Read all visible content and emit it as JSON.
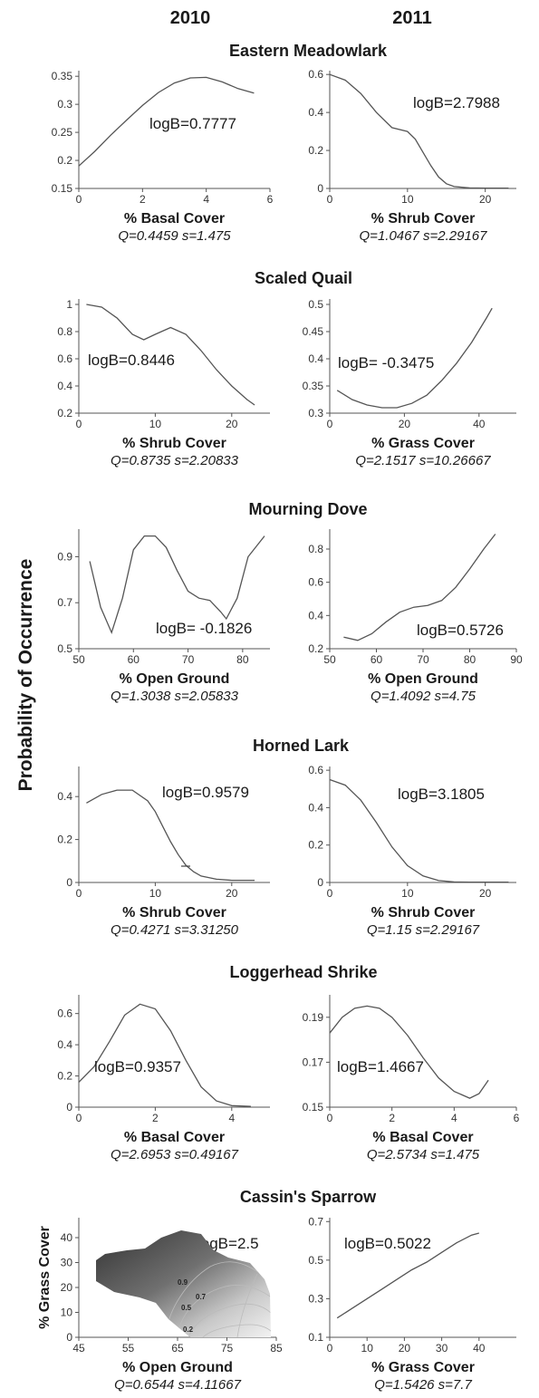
{
  "headers": [
    "2010",
    "2011"
  ],
  "ylabel": "Probability of Occurrence",
  "species": [
    "Eastern Meadowlark",
    "Scaled Quail",
    "Mourning Dove",
    "Horned Lark",
    "Loggerhead Shrike",
    "Cassin's Sparrow"
  ],
  "chart_data": [
    {
      "type": "line",
      "species": "Eastern Meadowlark",
      "year": "2010",
      "title": "",
      "xlabel": "% Basal Cover",
      "ylabel": "",
      "stats": "Q=0.4459 s=1.475",
      "logB": "logB=0.7777",
      "xlim": [
        0,
        6
      ],
      "ylim": [
        0.15,
        0.36
      ],
      "xticks": [
        0,
        2,
        4,
        6
      ],
      "yticks": [
        0.15,
        0.2,
        0.25,
        0.3,
        0.35
      ],
      "x": [
        0,
        0.5,
        1,
        1.5,
        2,
        2.5,
        3,
        3.5,
        4,
        4.5,
        5,
        5.5
      ],
      "y": [
        0.19,
        0.216,
        0.245,
        0.272,
        0.298,
        0.321,
        0.338,
        0.347,
        0.348,
        0.34,
        0.328,
        0.32
      ]
    },
    {
      "type": "line",
      "species": "Eastern Meadowlark",
      "year": "2011",
      "title": "",
      "xlabel": "% Shrub Cover",
      "ylabel": "",
      "stats": "Q=1.0467 s=2.29167",
      "logB": "logB=2.7988",
      "xlim": [
        0,
        24
      ],
      "ylim": [
        0,
        0.62
      ],
      "xticks": [
        0,
        10,
        20
      ],
      "yticks": [
        0,
        0.2,
        0.4,
        0.6
      ],
      "x": [
        0,
        2,
        4,
        6,
        8,
        10,
        11,
        12,
        13,
        14,
        15,
        16,
        18,
        20,
        23
      ],
      "y": [
        0.6,
        0.57,
        0.5,
        0.4,
        0.32,
        0.3,
        0.26,
        0.19,
        0.12,
        0.06,
        0.025,
        0.01,
        0.003,
        0.002,
        0.002
      ]
    },
    {
      "type": "line",
      "species": "Scaled Quail",
      "year": "2010",
      "title": "",
      "xlabel": "% Shrub Cover",
      "ylabel": "",
      "stats": "Q=0.8735 s=2.20833",
      "logB": "logB=0.8446",
      "xlim": [
        0,
        25
      ],
      "ylim": [
        0.2,
        1.04
      ],
      "xticks": [
        0,
        10,
        20
      ],
      "yticks": [
        0.2,
        0.4,
        0.6,
        0.8,
        1.0
      ],
      "x": [
        1,
        3,
        5,
        7,
        8.5,
        10,
        12,
        14,
        16,
        18,
        20,
        22,
        23
      ],
      "y": [
        1.0,
        0.98,
        0.9,
        0.78,
        0.74,
        0.78,
        0.83,
        0.78,
        0.66,
        0.52,
        0.4,
        0.3,
        0.26
      ]
    },
    {
      "type": "line",
      "species": "Scaled Quail",
      "year": "2011",
      "title": "",
      "xlabel": "% Grass Cover",
      "ylabel": "",
      "stats": "Q=2.1517 s=10.26667",
      "logB": "logB= -0.3475",
      "xlim": [
        0,
        50
      ],
      "ylim": [
        0.3,
        0.51
      ],
      "xticks": [
        0,
        20,
        40
      ],
      "yticks": [
        0.3,
        0.35,
        0.4,
        0.45,
        0.5
      ],
      "x": [
        2,
        6,
        10,
        14,
        18,
        22,
        26,
        30,
        34,
        38,
        42,
        43.5
      ],
      "y": [
        0.342,
        0.325,
        0.315,
        0.31,
        0.31,
        0.318,
        0.333,
        0.36,
        0.392,
        0.43,
        0.475,
        0.493
      ]
    },
    {
      "type": "line",
      "species": "Mourning Dove",
      "year": "2010",
      "title": "",
      "xlabel": "% Open Ground",
      "ylabel": "",
      "stats": "Q=1.3038 s=2.05833",
      "logB": "logB= -0.1826",
      "xlim": [
        50,
        85
      ],
      "ylim": [
        0.5,
        1.02
      ],
      "xticks": [
        50,
        60,
        70,
        80
      ],
      "yticks": [
        0.5,
        0.7,
        0.9
      ],
      "x": [
        52,
        54,
        56,
        58,
        60,
        62,
        64,
        66,
        68,
        70,
        72,
        74,
        76,
        77,
        79,
        81,
        84
      ],
      "y": [
        0.88,
        0.68,
        0.57,
        0.72,
        0.93,
        0.99,
        0.99,
        0.94,
        0.84,
        0.75,
        0.72,
        0.71,
        0.66,
        0.63,
        0.72,
        0.9,
        0.99
      ]
    },
    {
      "type": "line",
      "species": "Mourning Dove",
      "year": "2011",
      "title": "",
      "xlabel": "% Open Ground",
      "ylabel": "",
      "stats": "Q=1.4092 s=4.75",
      "logB": "logB=0.5726",
      "xlim": [
        50,
        90
      ],
      "ylim": [
        0.2,
        0.92
      ],
      "xticks": [
        50,
        60,
        70,
        80,
        90
      ],
      "yticks": [
        0.2,
        0.4,
        0.6,
        0.8
      ],
      "x": [
        53,
        56,
        59,
        62,
        65,
        68,
        71,
        74,
        77,
        80,
        83,
        85.5
      ],
      "y": [
        0.27,
        0.25,
        0.29,
        0.36,
        0.42,
        0.45,
        0.46,
        0.49,
        0.57,
        0.68,
        0.8,
        0.89
      ]
    },
    {
      "type": "line",
      "species": "Horned Lark",
      "year": "2010",
      "title": "",
      "xlabel": "% Shrub Cover",
      "ylabel": "",
      "stats": "Q=0.4271 s=3.31250",
      "logB": "logB=0.9579",
      "xlim": [
        0,
        25
      ],
      "ylim": [
        0,
        0.54
      ],
      "xticks": [
        0,
        10,
        20
      ],
      "yticks": [
        0,
        0.2,
        0.4
      ],
      "x": [
        1,
        3,
        5,
        7,
        9,
        10,
        11,
        12,
        13,
        14,
        15,
        16,
        18,
        20,
        23
      ],
      "y": [
        0.37,
        0.41,
        0.43,
        0.43,
        0.38,
        0.33,
        0.26,
        0.19,
        0.13,
        0.08,
        0.05,
        0.03,
        0.015,
        0.01,
        0.01
      ]
    },
    {
      "type": "line",
      "species": "Horned Lark",
      "year": "2011",
      "title": "",
      "xlabel": "% Shrub Cover",
      "ylabel": "",
      "stats": "Q=1.15 s=2.29167",
      "logB": "logB=3.1805",
      "xlim": [
        0,
        24
      ],
      "ylim": [
        0,
        0.62
      ],
      "xticks": [
        0,
        10,
        20
      ],
      "yticks": [
        0,
        0.2,
        0.4,
        0.6
      ],
      "x": [
        0,
        2,
        4,
        6,
        8,
        10,
        12,
        14,
        16,
        18,
        20,
        23
      ],
      "y": [
        0.55,
        0.52,
        0.44,
        0.32,
        0.19,
        0.09,
        0.035,
        0.01,
        0.003,
        0.002,
        0.002,
        0.002
      ]
    },
    {
      "type": "line",
      "species": "Loggerhead Shrike",
      "year": "2010",
      "title": "",
      "xlabel": "% Basal Cover",
      "ylabel": "",
      "stats": "Q=2.6953 s=0.49167",
      "logB": "logB=0.9357",
      "xlim": [
        0,
        5
      ],
      "ylim": [
        0,
        0.72
      ],
      "xticks": [
        0,
        2,
        4
      ],
      "yticks": [
        0,
        0.2,
        0.4,
        0.6
      ],
      "x": [
        0,
        0.4,
        0.8,
        1.2,
        1.6,
        2.0,
        2.4,
        2.8,
        3.2,
        3.6,
        4.0,
        4.5
      ],
      "y": [
        0.16,
        0.26,
        0.42,
        0.59,
        0.66,
        0.63,
        0.49,
        0.3,
        0.13,
        0.04,
        0.01,
        0.005
      ]
    },
    {
      "type": "line",
      "species": "Loggerhead Shrike",
      "year": "2011",
      "title": "",
      "xlabel": "% Basal Cover",
      "ylabel": "",
      "stats": "Q=2.5734 s=1.475",
      "logB": "logB=1.4667",
      "xlim": [
        0,
        6
      ],
      "ylim": [
        0.15,
        0.2
      ],
      "xticks": [
        0,
        2,
        4,
        6
      ],
      "yticks": [
        0.15,
        0.17,
        0.19
      ],
      "x": [
        0,
        0.4,
        0.8,
        1.2,
        1.6,
        2.0,
        2.5,
        3.0,
        3.5,
        4.0,
        4.5,
        4.8,
        5.1
      ],
      "y": [
        0.183,
        0.19,
        0.194,
        0.195,
        0.194,
        0.19,
        0.182,
        0.172,
        0.163,
        0.157,
        0.154,
        0.156,
        0.162
      ]
    },
    {
      "type": "heatmap",
      "species": "Cassin's Sparrow",
      "year": "2010",
      "title": "",
      "xlabel": "% Open Ground",
      "ylabel": "% Grass Cover",
      "stats": "Q=0.6544 s=4.11667",
      "logB": "logB=2.5",
      "xlim": [
        45,
        85
      ],
      "ylim": [
        0,
        48
      ],
      "xticks": [
        45,
        55,
        65,
        75,
        85
      ],
      "yticks": [
        0,
        10,
        20,
        30,
        40
      ],
      "contour_levels": [
        "0.9",
        "0.7",
        "0.5",
        "0.2"
      ]
    },
    {
      "type": "line",
      "species": "Cassin's Sparrow",
      "year": "2011",
      "title": "",
      "xlabel": "% Grass Cover",
      "ylabel": "",
      "stats": "Q=1.5426 s=7.7",
      "logB": "logB=0.5022",
      "xlim": [
        0,
        50
      ],
      "ylim": [
        0.1,
        0.72
      ],
      "xticks": [
        0,
        10,
        20,
        30,
        40
      ],
      "yticks": [
        0.1,
        0.3,
        0.5,
        0.7
      ],
      "x": [
        2,
        6,
        10,
        14,
        18,
        22,
        26,
        30,
        34,
        38,
        40
      ],
      "y": [
        0.2,
        0.25,
        0.3,
        0.35,
        0.4,
        0.45,
        0.49,
        0.54,
        0.59,
        0.63,
        0.64
      ]
    }
  ]
}
